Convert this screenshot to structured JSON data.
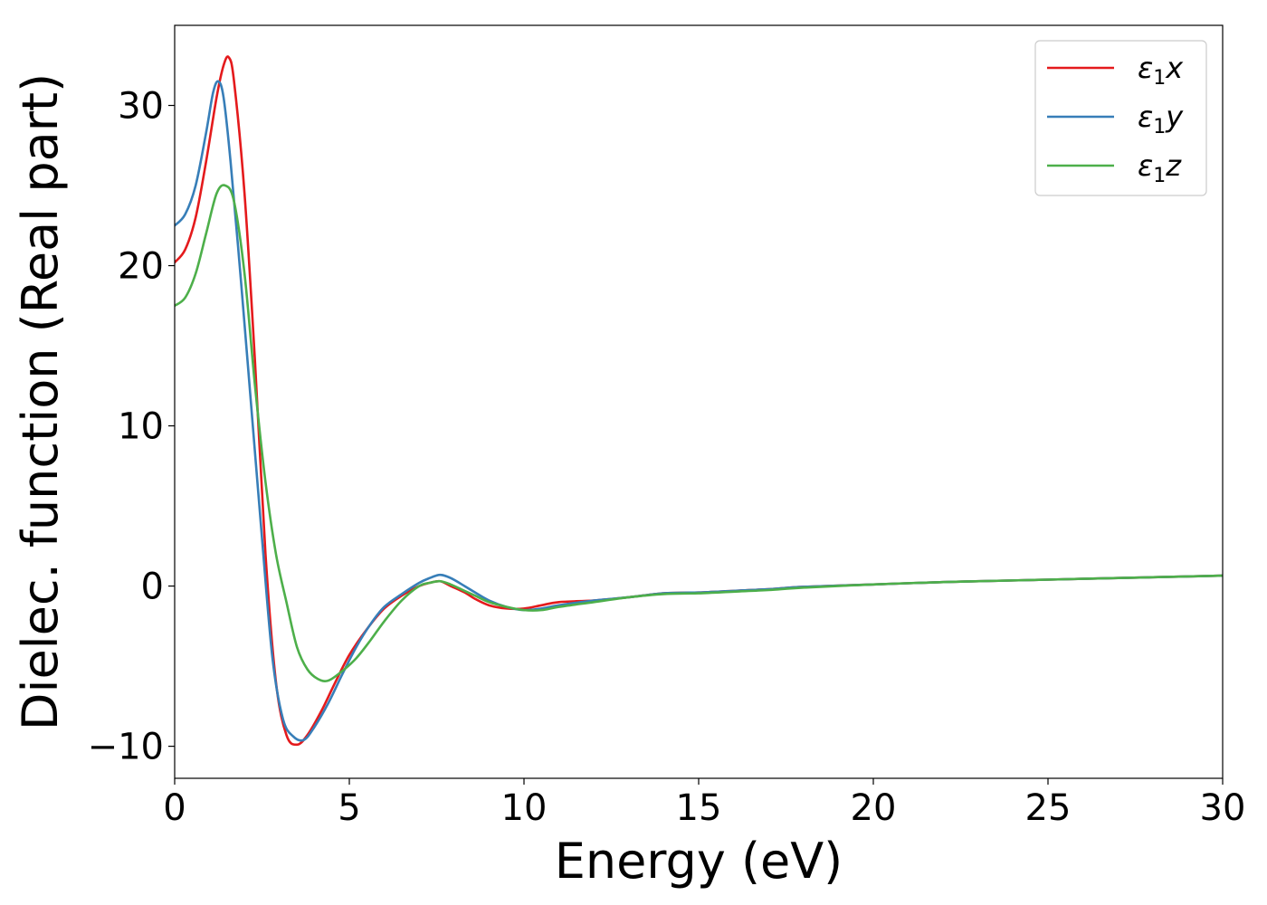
{
  "chart_data": {
    "type": "line",
    "title": "",
    "xlabel": "Energy (eV)",
    "ylabel": "Dielec. function (Real part)",
    "xlim": [
      0,
      30
    ],
    "ylim": [
      -12,
      35
    ],
    "xticks": [
      0,
      5,
      10,
      15,
      20,
      25,
      30
    ],
    "xtick_labels": [
      "0",
      "5",
      "10",
      "15",
      "20",
      "25",
      "30"
    ],
    "yticks": [
      -10,
      0,
      10,
      20,
      30
    ],
    "ytick_labels": [
      "−10",
      "0",
      "10",
      "20",
      "30"
    ],
    "grid": false,
    "legend_position": "top-right",
    "series": [
      {
        "name": "ε₁x",
        "symbol": "ε",
        "sub": "1",
        "component": "x",
        "color": "#e41a1c",
        "x": [
          0,
          0.3,
          0.6,
          0.9,
          1.2,
          1.4,
          1.55,
          1.7,
          2.0,
          2.3,
          2.6,
          2.9,
          3.2,
          3.5,
          3.8,
          4.2,
          4.6,
          5.0,
          5.5,
          6.0,
          6.5,
          7.0,
          7.3,
          7.6,
          7.9,
          8.3,
          8.6,
          9.0,
          9.5,
          10.0,
          10.5,
          11.0,
          12.0,
          13.0,
          14.0,
          15.0,
          16.0,
          17.0,
          18.0,
          20.0,
          22.0,
          24.0,
          26.0,
          28.0,
          30.0
        ],
        "y": [
          20.2,
          21.0,
          23.0,
          26.5,
          30.5,
          32.5,
          33.0,
          31.5,
          24.5,
          14.0,
          2.0,
          -6.0,
          -9.3,
          -9.9,
          -9.3,
          -7.8,
          -6.0,
          -4.3,
          -2.7,
          -1.4,
          -0.6,
          0.0,
          0.2,
          0.3,
          0.0,
          -0.4,
          -0.8,
          -1.2,
          -1.4,
          -1.4,
          -1.2,
          -1.0,
          -0.9,
          -0.7,
          -0.45,
          -0.4,
          -0.3,
          -0.2,
          -0.05,
          0.1,
          0.25,
          0.35,
          0.45,
          0.55,
          0.65
        ]
      },
      {
        "name": "ε₁y",
        "symbol": "ε",
        "sub": "1",
        "component": "y",
        "color": "#377eb8",
        "x": [
          0,
          0.3,
          0.6,
          0.9,
          1.1,
          1.25,
          1.4,
          1.6,
          1.9,
          2.2,
          2.5,
          2.8,
          3.1,
          3.4,
          3.7,
          4.0,
          4.4,
          4.8,
          5.2,
          5.6,
          6.0,
          6.5,
          7.0,
          7.3,
          7.6,
          7.9,
          8.3,
          8.6,
          9.0,
          9.5,
          10.0,
          10.5,
          11.0,
          12.0,
          13.0,
          14.0,
          15.0,
          16.0,
          17.0,
          18.0,
          20.0,
          22.0,
          24.0,
          26.0,
          28.0,
          30.0
        ],
        "y": [
          22.5,
          23.2,
          25.0,
          28.3,
          30.8,
          31.5,
          30.5,
          26.5,
          19.0,
          11.0,
          3.0,
          -4.5,
          -8.3,
          -9.4,
          -9.6,
          -8.8,
          -7.3,
          -5.5,
          -3.8,
          -2.4,
          -1.3,
          -0.5,
          0.2,
          0.5,
          0.7,
          0.5,
          0.0,
          -0.4,
          -0.9,
          -1.3,
          -1.5,
          -1.4,
          -1.2,
          -0.9,
          -0.7,
          -0.45,
          -0.4,
          -0.3,
          -0.2,
          -0.05,
          0.1,
          0.25,
          0.35,
          0.45,
          0.55,
          0.65
        ]
      },
      {
        "name": "ε₁z",
        "symbol": "ε",
        "sub": "1",
        "component": "z",
        "color": "#4daf4a",
        "x": [
          0,
          0.3,
          0.6,
          0.9,
          1.2,
          1.45,
          1.7,
          2.0,
          2.3,
          2.6,
          2.9,
          3.2,
          3.5,
          3.8,
          4.1,
          4.4,
          4.8,
          5.2,
          5.6,
          6.0,
          6.5,
          7.0,
          7.3,
          7.6,
          7.9,
          8.3,
          8.6,
          9.0,
          9.5,
          10.0,
          10.5,
          11.0,
          12.0,
          13.0,
          14.0,
          15.0,
          16.0,
          17.0,
          18.0,
          20.0,
          22.0,
          24.0,
          26.0,
          28.0,
          30.0
        ],
        "y": [
          17.5,
          18.0,
          19.5,
          22.0,
          24.5,
          25.0,
          24.0,
          19.5,
          12.5,
          6.5,
          2.0,
          -1.0,
          -3.8,
          -5.2,
          -5.8,
          -5.9,
          -5.3,
          -4.5,
          -3.4,
          -2.2,
          -0.9,
          0.0,
          0.2,
          0.3,
          0.1,
          -0.3,
          -0.6,
          -1.0,
          -1.3,
          -1.5,
          -1.5,
          -1.3,
          -1.0,
          -0.7,
          -0.5,
          -0.45,
          -0.35,
          -0.25,
          -0.1,
          0.1,
          0.25,
          0.35,
          0.45,
          0.55,
          0.65
        ]
      }
    ]
  }
}
